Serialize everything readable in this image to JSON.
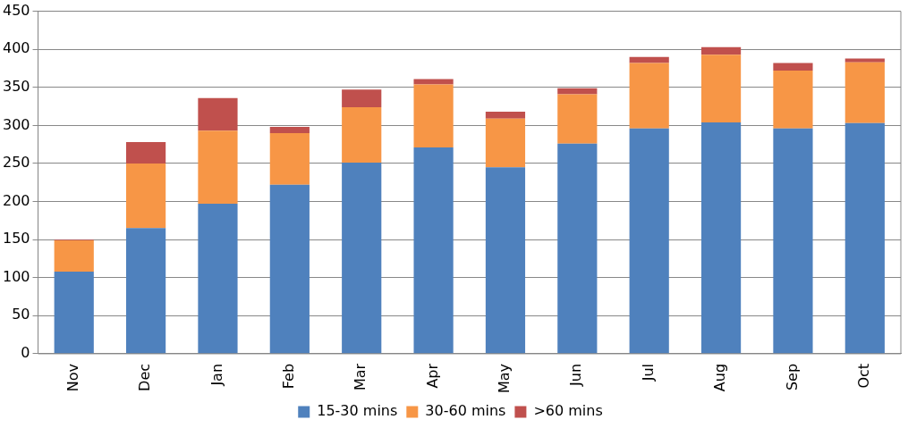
{
  "chart_data": {
    "type": "bar",
    "stacked": true,
    "categories": [
      "Nov",
      "Dec",
      "Jan",
      "Feb",
      "Mar",
      "Apr",
      "May",
      "Jun",
      "Jul",
      "Aug",
      "Sep",
      "Oct"
    ],
    "series": [
      {
        "name": "15-30 mins",
        "color": "#4f81bd",
        "values": [
          108,
          165,
          197,
          222,
          251,
          271,
          245,
          276,
          296,
          304,
          296,
          303
        ]
      },
      {
        "name": "30-60 mins",
        "color": "#f79646",
        "values": [
          41,
          85,
          96,
          68,
          73,
          83,
          64,
          65,
          86,
          89,
          76,
          80
        ]
      },
      {
        "name": ">60 mins",
        "color": "#c0504d",
        "values": [
          1,
          28,
          43,
          8,
          23,
          7,
          9,
          8,
          8,
          10,
          10,
          5
        ]
      }
    ],
    "ylim": [
      0,
      450
    ],
    "yticks": [
      0,
      50,
      100,
      150,
      200,
      250,
      300,
      350,
      400,
      450
    ],
    "grid": "y",
    "legend": "bottom"
  }
}
